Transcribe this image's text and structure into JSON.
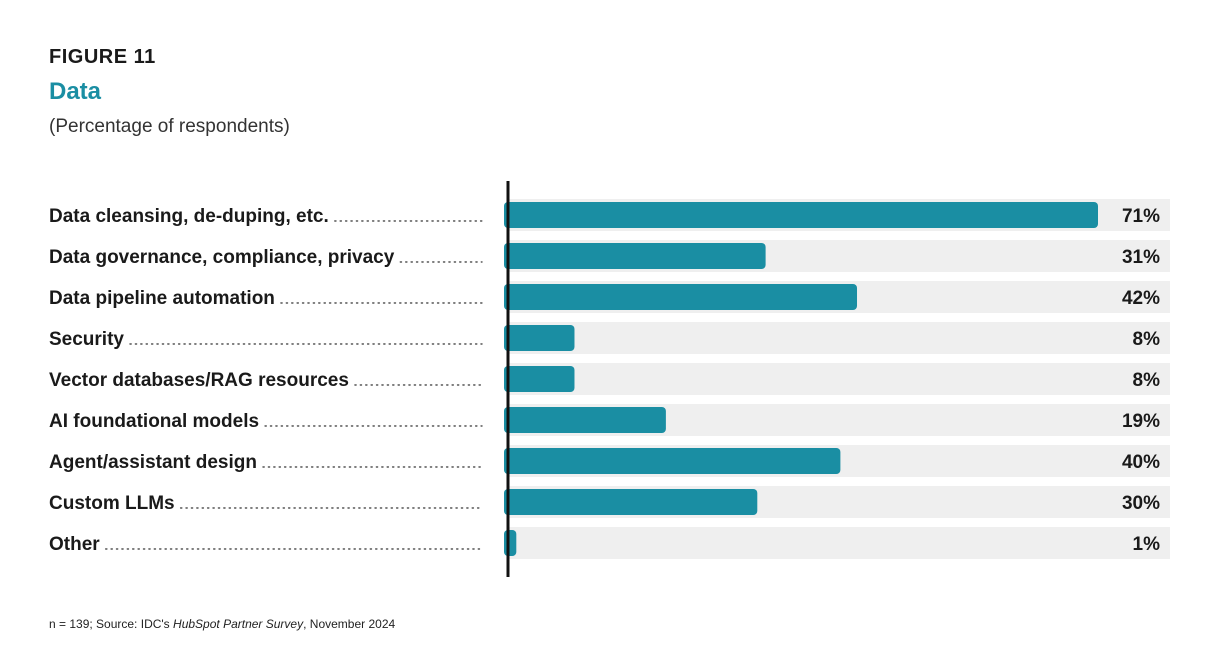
{
  "figure": {
    "label": "FIGURE 11",
    "title": "Data",
    "subtitle": "(Percentage of respondents)"
  },
  "colors": {
    "bar": "#1a8ea3",
    "track": "#efefef",
    "title": "#1a8ea3",
    "axis": "#111111"
  },
  "chart_data": {
    "type": "bar",
    "orientation": "horizontal",
    "title": "Data",
    "subtitle": "(Percentage of respondents)",
    "categories": [
      "Data cleansing, de-duping, etc.",
      "Data governance, compliance, privacy",
      "Data pipeline automation",
      "Security",
      "Vector databases/RAG resources",
      "AI foundational models",
      "Agent/assistant design",
      "Custom LLMs",
      "Other"
    ],
    "values": [
      71,
      31,
      42,
      8,
      8,
      19,
      40,
      30,
      1
    ],
    "value_labels": [
      "71%",
      "31%",
      "42%",
      "8%",
      "8%",
      "19%",
      "40%",
      "30%",
      "1%"
    ],
    "unit": "%",
    "xlim": [
      0,
      80
    ],
    "grid": false,
    "legend": "none"
  },
  "footnote": {
    "prefix": "n = 139; Source: IDC's ",
    "source_title": "HubSpot Partner Survey",
    "suffix": ", November 2024"
  }
}
